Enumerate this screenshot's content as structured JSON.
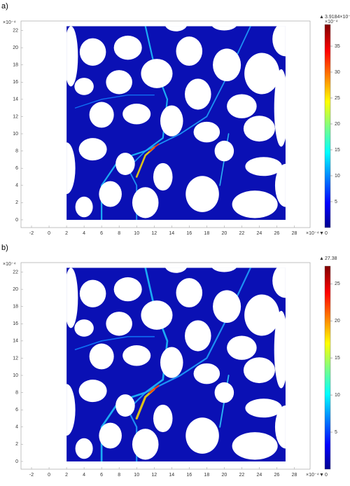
{
  "chart_data": [
    {
      "type": "heatmap",
      "panel_label": "a)",
      "xlim": [
        -3.2,
        29.8
      ],
      "xticks": [
        -2,
        0,
        2,
        4,
        6,
        8,
        10,
        12,
        14,
        16,
        18,
        20,
        22,
        24,
        26,
        28
      ],
      "ylim": [
        -0.9,
        23.1
      ],
      "yticks": [
        0,
        2,
        4,
        6,
        8,
        10,
        12,
        14,
        16,
        18,
        20,
        22
      ],
      "x_unit": "×10⁻⁴",
      "y_unit": "×10⁻⁴",
      "colorbar": {
        "lim": [
          0,
          39.184
        ],
        "ticks": [
          5,
          10,
          15,
          20,
          25,
          30,
          35
        ],
        "max": {
          "value": 39.184,
          "label": "3.9184×10⁻³"
        },
        "min": 0,
        "unit": "×10⁻⁴"
      }
    },
    {
      "type": "heatmap",
      "panel_label": "b)",
      "xlim": [
        -3.2,
        29.8
      ],
      "xticks": [
        -2,
        0,
        2,
        4,
        6,
        8,
        10,
        12,
        14,
        16,
        18,
        20,
        22,
        24,
        26,
        28
      ],
      "ylim": [
        -0.9,
        23.1
      ],
      "yticks": [
        0,
        2,
        4,
        6,
        8,
        10,
        12,
        14,
        16,
        18,
        20,
        22
      ],
      "x_unit": "×10⁻⁴",
      "y_unit": "×10⁻⁴",
      "colorbar": {
        "lim": [
          0,
          27.38
        ],
        "ticks": [
          5,
          10,
          15,
          20,
          25
        ],
        "max": {
          "value": 27.38,
          "label": "27.38"
        },
        "min": 0
      }
    }
  ]
}
